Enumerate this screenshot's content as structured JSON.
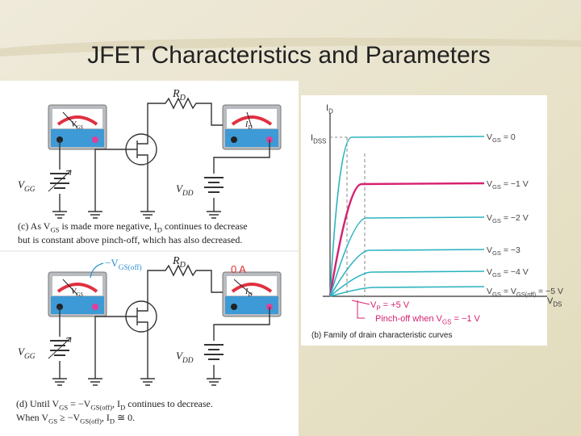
{
  "title": "JFET Characteristics and Parameters",
  "circuit_c": {
    "r_d": [
      {
        "text": "R"
      },
      {
        "sub": "D"
      }
    ],
    "meter_vgs": [
      {
        "text": "V"
      },
      {
        "sub": "GS"
      }
    ],
    "meter_id": [
      {
        "text": "I"
      },
      {
        "sub": "D"
      }
    ],
    "v_gg": [
      {
        "text": "V"
      },
      {
        "sub": "GG"
      }
    ],
    "v_dd": [
      {
        "text": "V"
      },
      {
        "sub": "DD"
      }
    ],
    "caption": [
      [
        {
          "text": "(c) As V"
        },
        {
          "sub": "GS"
        },
        {
          "text": " is made more negative, I"
        },
        {
          "sub": "D"
        },
        {
          "text": " continues to decrease"
        }
      ],
      [
        {
          "text": "but is constant above pinch-off, which has also decreased."
        }
      ]
    ]
  },
  "circuit_d": {
    "r_d": [
      {
        "text": "R"
      },
      {
        "sub": "D"
      }
    ],
    "meter_vgs": [
      {
        "text": "V"
      },
      {
        "sub": "GS"
      }
    ],
    "meter_id": [
      {
        "text": "I"
      },
      {
        "sub": "D"
      }
    ],
    "v_gg": [
      {
        "text": "V"
      },
      {
        "sub": "GG"
      }
    ],
    "v_dd": [
      {
        "text": "V"
      },
      {
        "sub": "DD"
      }
    ],
    "v_gs_off": [
      {
        "text": "−V"
      },
      {
        "sub": "GS(off)"
      }
    ],
    "zero_a": "0 A",
    "caption": [
      [
        {
          "text": "(d) Until V"
        },
        {
          "sub": "GS"
        },
        {
          "text": " = −V"
        },
        {
          "sub": "GS(off)"
        },
        {
          "text": ", I"
        },
        {
          "sub": "D"
        },
        {
          "text": " continues to decrease."
        }
      ],
      [
        {
          "text": "When V"
        },
        {
          "sub": "GS"
        },
        {
          "text": " ≥ −V"
        },
        {
          "sub": "GS(off)"
        },
        {
          "text": ", I"
        },
        {
          "sub": "D"
        },
        {
          "text": " ≅ 0."
        }
      ]
    ]
  },
  "graph": {
    "y_axis": [
      {
        "text": "I"
      },
      {
        "sub": "D"
      }
    ],
    "i_dss": [
      {
        "text": "I"
      },
      {
        "sub": "DSS"
      }
    ],
    "x_axis": [
      {
        "text": "V"
      },
      {
        "sub": "DS"
      }
    ],
    "curves": [
      {
        "label": [
          {
            "text": "V"
          },
          {
            "sub": "GS"
          },
          {
            "text": " = 0"
          }
        ],
        "color": "#2bb3c0"
      },
      {
        "label": [
          {
            "text": "V"
          },
          {
            "sub": "GS"
          },
          {
            "text": " = −1 V"
          }
        ],
        "color": "#d6206f"
      },
      {
        "label": [
          {
            "text": "V"
          },
          {
            "sub": "GS"
          },
          {
            "text": " = −2 V"
          }
        ],
        "color": "#2bb3c0"
      },
      {
        "label": [
          {
            "text": "V"
          },
          {
            "sub": "GS"
          },
          {
            "text": " = −3"
          }
        ],
        "color": "#2bb3c0"
      },
      {
        "label": [
          {
            "text": "V"
          },
          {
            "sub": "GS"
          },
          {
            "text": " = −4 V"
          }
        ],
        "color": "#2bb3c0"
      },
      {
        "label": [
          {
            "text": "V"
          },
          {
            "sub": "GS"
          },
          {
            "text": " = V"
          },
          {
            "sub": "GS(off)"
          },
          {
            "text": " = −5 V"
          }
        ],
        "color": "#2bb3c0"
      }
    ],
    "v_p": [
      {
        "text": "V"
      },
      {
        "sub": "P"
      },
      {
        "text": " = +5 V"
      }
    ],
    "pinch_off": [
      {
        "text": "Pinch-off when V"
      },
      {
        "sub": "GS"
      },
      {
        "text": " = −1 V"
      }
    ],
    "caption": "(b) Family of drain characteristic curves"
  }
}
